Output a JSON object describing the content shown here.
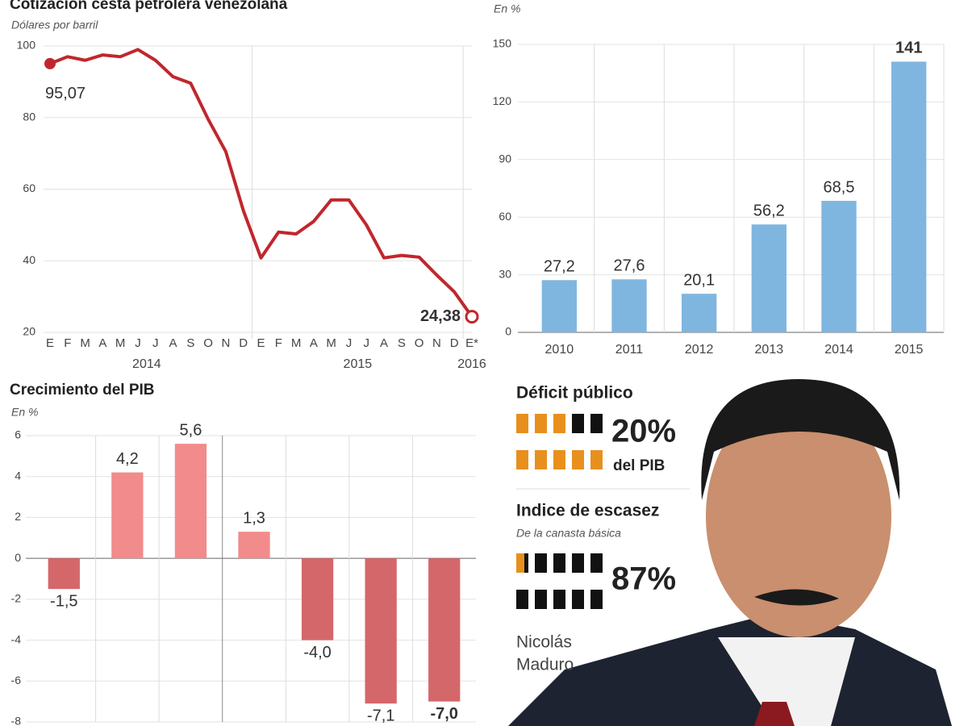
{
  "chart_data": [
    {
      "type": "line",
      "title": "Cotización cesta petrolera venezolana",
      "subtitle": "Dólares por barril",
      "categories": [
        "E",
        "F",
        "M",
        "A",
        "M",
        "J",
        "J",
        "A",
        "S",
        "O",
        "N",
        "D",
        "E",
        "F",
        "M",
        "A",
        "M",
        "J",
        "J",
        "A",
        "S",
        "O",
        "N",
        "D",
        "E*"
      ],
      "year_labels": [
        "2014",
        "2015",
        "2016"
      ],
      "values": [
        95.07,
        97,
        96,
        97.5,
        97,
        99,
        96,
        91.4,
        89.6,
        79.5,
        70.5,
        54,
        40.8,
        48,
        47.5,
        51,
        57,
        57,
        50,
        40.8,
        41.5,
        41,
        36,
        31.3,
        24.38
      ],
      "value_labels": [
        "95,07",
        null,
        null,
        null,
        null,
        null,
        null,
        null,
        null,
        null,
        null,
        null,
        null,
        null,
        null,
        null,
        null,
        null,
        null,
        null,
        null,
        null,
        null,
        null,
        "24,38"
      ],
      "color": "#c0272d",
      "ylim": [
        20,
        100
      ],
      "yticks": [
        20,
        40,
        60,
        80,
        100
      ],
      "grid": true
    },
    {
      "type": "bar",
      "subtitle": "En %",
      "categories": [
        "2010",
        "2011",
        "2012",
        "2013",
        "2014",
        "2015"
      ],
      "values": [
        27.2,
        27.6,
        20.1,
        56.2,
        68.5,
        141
      ],
      "value_labels": [
        "27,2",
        "27,6",
        "20,1",
        "56,2",
        "68,5",
        "141"
      ],
      "color": "#7fb6df",
      "ylim": [
        0,
        150
      ],
      "yticks": [
        0,
        30,
        60,
        90,
        120,
        150
      ],
      "grid": true
    },
    {
      "type": "bar",
      "title": "Crecimiento del PIB",
      "subtitle": "En %",
      "categories": [
        null,
        null,
        null,
        null,
        null,
        null,
        null
      ],
      "values": [
        -1.5,
        4.2,
        5.6,
        1.3,
        -4.0,
        -7.1,
        -7.0
      ],
      "value_labels": [
        "-1,5",
        "4,2",
        "5,6",
        "1,3",
        "-4,0",
        "-7,1",
        "-7,0"
      ],
      "color": "#f28b8b",
      "negative_color": "#d4676a",
      "ylim": [
        -8,
        6
      ],
      "yticks": [
        -8,
        -6,
        -4,
        -2,
        0,
        2,
        4,
        6
      ],
      "grid": true
    }
  ],
  "deficit": {
    "title": "Déficit público",
    "value_label": "20%",
    "note": "del PIB"
  },
  "shortage": {
    "title": "Indice de escasez",
    "subtitle": "De la canasta básica",
    "value_label": "87%"
  },
  "caption": [
    "Nicolás",
    "Maduro"
  ]
}
